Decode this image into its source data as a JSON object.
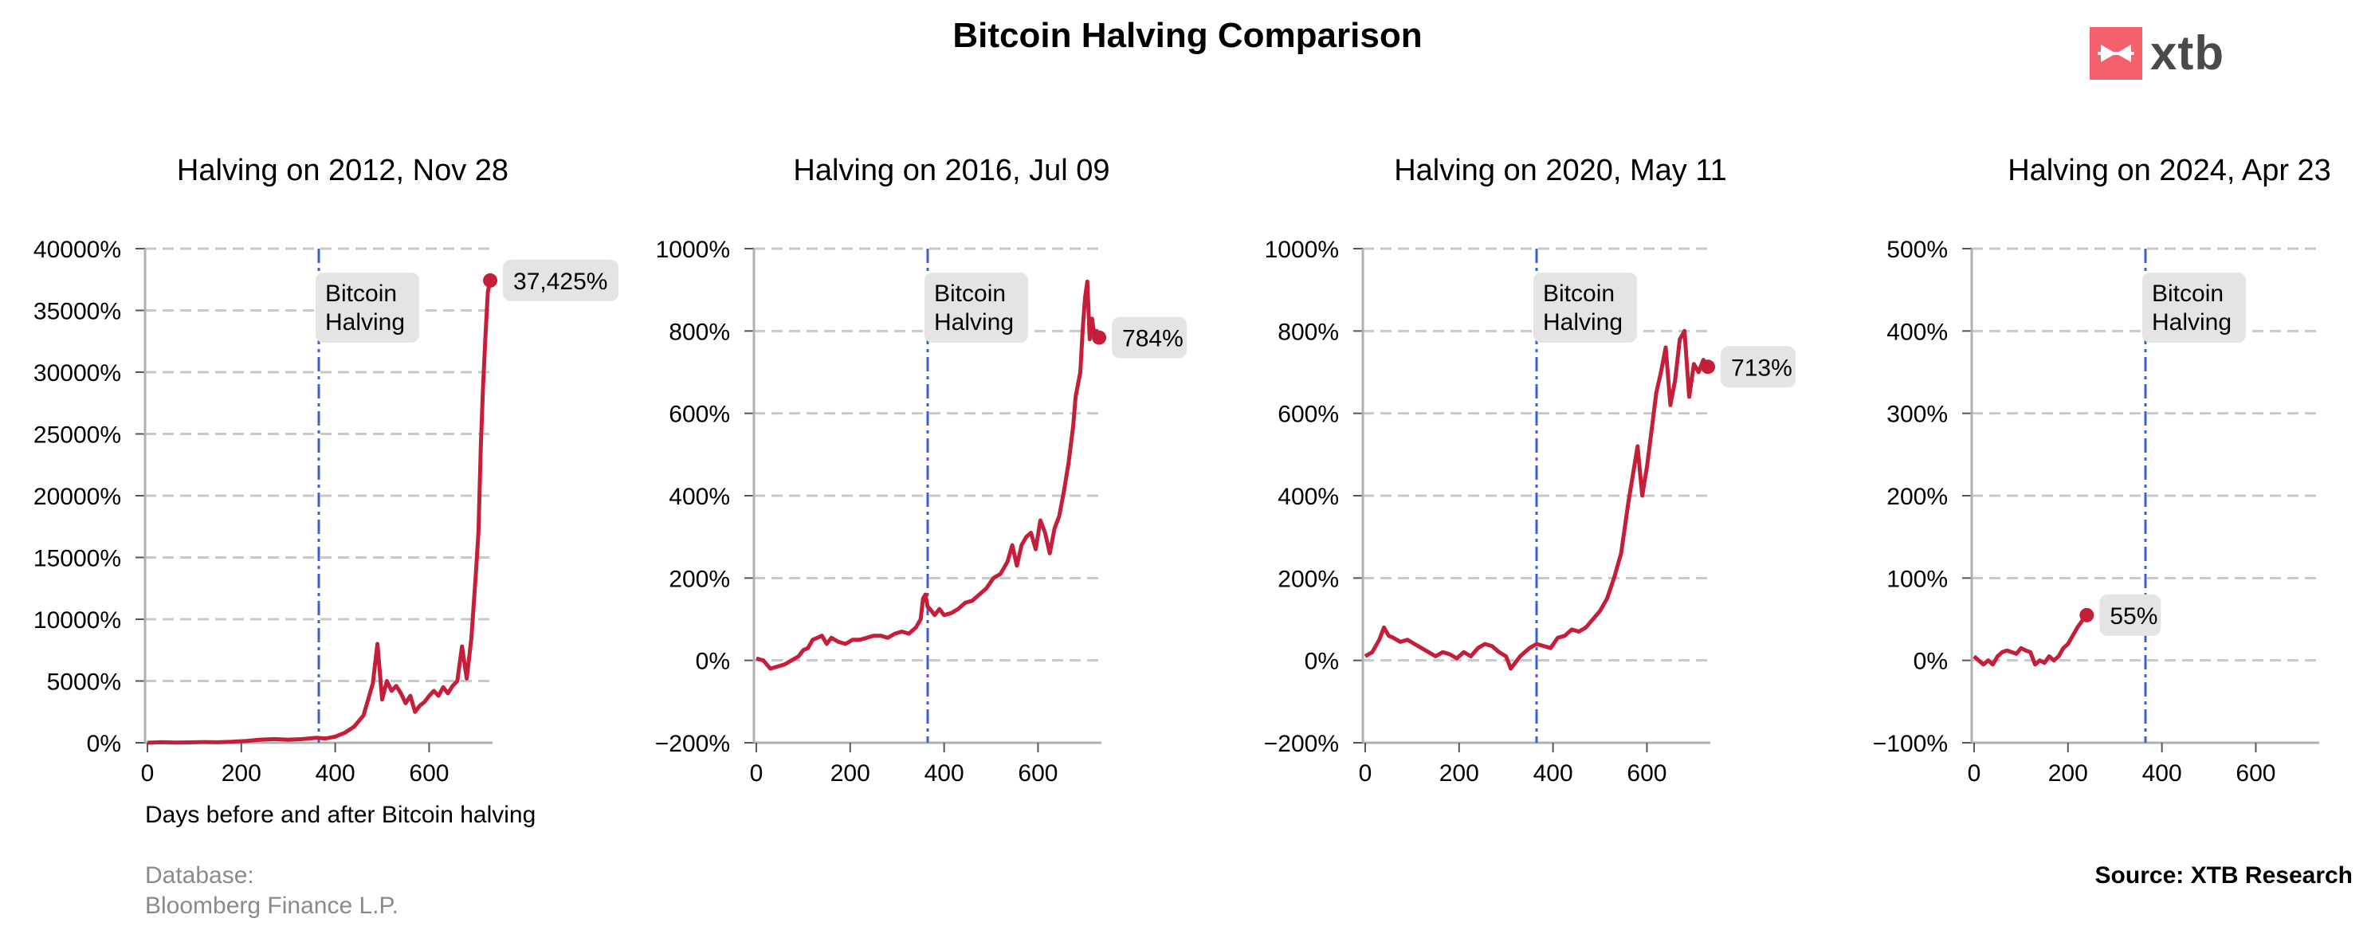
{
  "page": {
    "title": "Bitcoin Halving Comparison",
    "logo_text": "xtb",
    "database_label": "Database:",
    "database_value": "Bloomberg Finance L.P.",
    "source": "Source: XTB Research"
  },
  "colors": {
    "line": "#c41e3a",
    "halving_line": "#3a5fd9",
    "grid": "#c8c8c8",
    "label_box": "#e4e4e4",
    "logo_brand": "#f4606c"
  },
  "chart_data": [
    {
      "type": "line",
      "title": "Halving on 2012, Nov 28",
      "xlabel": "Days before and after Bitcoin halving",
      "ylabel": "",
      "xlim": [
        -5,
        735
      ],
      "ylim": [
        0,
        40000
      ],
      "xticks": [
        0,
        200,
        400,
        600
      ],
      "yticks": [
        0,
        5000,
        10000,
        15000,
        20000,
        25000,
        30000,
        35000,
        40000
      ],
      "ytick_labels": [
        "0%",
        "5000%",
        "10000%",
        "15000%",
        "20000%",
        "25000%",
        "30000%",
        "35000%",
        "40000%"
      ],
      "grid": "horizontal dashed",
      "halving_day": 365,
      "halving_label": [
        "Bitcoin",
        "Halving"
      ],
      "end_label": "37,425%",
      "series": [
        {
          "x": [
            0,
            30,
            60,
            90,
            120,
            150,
            180,
            210,
            240,
            270,
            300,
            330,
            360,
            380,
            400,
            420,
            440,
            460,
            470,
            480,
            490,
            500,
            510,
            520,
            530,
            540,
            550,
            560,
            570,
            580,
            590,
            600,
            610,
            620,
            630,
            640,
            650,
            660,
            670,
            680,
            690,
            700,
            705,
            710,
            715,
            720,
            725,
            730
          ],
          "y": [
            0,
            50,
            20,
            30,
            60,
            40,
            80,
            150,
            250,
            300,
            250,
            300,
            400,
            350,
            500,
            800,
            1300,
            2200,
            3500,
            4800,
            8000,
            3500,
            5000,
            4200,
            4600,
            4000,
            3200,
            3800,
            2500,
            3000,
            3300,
            3800,
            4200,
            3800,
            4500,
            4000,
            4600,
            5000,
            7800,
            5200,
            8500,
            14000,
            17000,
            24000,
            29000,
            33000,
            36500,
            37425
          ]
        }
      ]
    },
    {
      "type": "line",
      "title": "Halving on 2016, Jul 09",
      "xlabel": "",
      "ylabel": "",
      "xlim": [
        -5,
        735
      ],
      "ylim": [
        -200,
        1000
      ],
      "xticks": [
        0,
        200,
        400,
        600
      ],
      "yticks": [
        -200,
        0,
        200,
        400,
        600,
        800,
        1000
      ],
      "ytick_labels": [
        "−200%",
        "0%",
        "200%",
        "400%",
        "600%",
        "800%",
        "1000%"
      ],
      "grid": "horizontal dashed",
      "halving_day": 365,
      "halving_label": [
        "Bitcoin",
        "Halving"
      ],
      "end_label": "784%",
      "series": [
        {
          "x": [
            0,
            15,
            30,
            45,
            60,
            75,
            90,
            100,
            110,
            120,
            130,
            140,
            150,
            160,
            175,
            190,
            205,
            220,
            235,
            250,
            265,
            280,
            295,
            310,
            325,
            340,
            350,
            355,
            360,
            365,
            370,
            380,
            390,
            400,
            415,
            430,
            445,
            460,
            475,
            490,
            505,
            520,
            535,
            545,
            555,
            565,
            575,
            585,
            595,
            605,
            615,
            625,
            635,
            645,
            655,
            665,
            675,
            680,
            690,
            695,
            700,
            705,
            710,
            715,
            720,
            725,
            730
          ],
          "y": [
            5,
            0,
            -20,
            -15,
            -10,
            0,
            10,
            25,
            30,
            50,
            55,
            60,
            40,
            55,
            45,
            40,
            50,
            50,
            55,
            60,
            60,
            55,
            65,
            70,
            65,
            80,
            100,
            150,
            160,
            130,
            125,
            110,
            125,
            110,
            115,
            125,
            140,
            145,
            160,
            175,
            200,
            210,
            240,
            280,
            230,
            280,
            300,
            310,
            270,
            340,
            310,
            260,
            320,
            350,
            410,
            480,
            570,
            640,
            700,
            800,
            880,
            920,
            780,
            830,
            790,
            800,
            784
          ]
        }
      ]
    },
    {
      "type": "line",
      "title": "Halving on 2020, May 11",
      "xlabel": "",
      "ylabel": "",
      "xlim": [
        -5,
        735
      ],
      "ylim": [
        -200,
        1000
      ],
      "xticks": [
        0,
        200,
        400,
        600
      ],
      "yticks": [
        -200,
        0,
        200,
        400,
        600,
        800,
        1000
      ],
      "ytick_labels": [
        "−200%",
        "0%",
        "200%",
        "400%",
        "600%",
        "800%",
        "1000%"
      ],
      "grid": "horizontal dashed",
      "halving_day": 365,
      "halving_label": [
        "Bitcoin",
        "Halving"
      ],
      "end_label": "713%",
      "series": [
        {
          "x": [
            0,
            15,
            30,
            40,
            50,
            60,
            75,
            90,
            105,
            120,
            135,
            150,
            165,
            180,
            195,
            210,
            225,
            240,
            255,
            270,
            285,
            300,
            310,
            320,
            330,
            340,
            350,
            365,
            380,
            395,
            410,
            425,
            440,
            455,
            470,
            485,
            500,
            515,
            530,
            545,
            560,
            570,
            580,
            590,
            600,
            610,
            620,
            630,
            640,
            650,
            660,
            670,
            680,
            690,
            700,
            710,
            720,
            730
          ],
          "y": [
            10,
            20,
            50,
            80,
            60,
            55,
            45,
            50,
            40,
            30,
            20,
            10,
            20,
            15,
            5,
            20,
            10,
            30,
            40,
            35,
            20,
            10,
            -20,
            -5,
            10,
            20,
            30,
            40,
            35,
            30,
            55,
            60,
            75,
            70,
            80,
            100,
            120,
            150,
            200,
            260,
            380,
            450,
            520,
            400,
            470,
            560,
            650,
            700,
            760,
            620,
            680,
            780,
            800,
            640,
            720,
            700,
            730,
            713
          ]
        }
      ]
    },
    {
      "type": "line",
      "title": "Halving on 2024, Apr 23",
      "xlabel": "",
      "ylabel": "",
      "xlim": [
        -5,
        735
      ],
      "ylim": [
        -100,
        500
      ],
      "xticks": [
        0,
        200,
        400,
        600
      ],
      "yticks": [
        -100,
        0,
        100,
        200,
        300,
        400,
        500
      ],
      "ytick_labels": [
        "−100%",
        "0%",
        "100%",
        "200%",
        "300%",
        "400%",
        "500%"
      ],
      "grid": "horizontal dashed",
      "halving_day": 365,
      "halving_label": [
        "Bitcoin",
        "Halving"
      ],
      "end_label": "55%",
      "series": [
        {
          "x": [
            0,
            10,
            20,
            30,
            40,
            50,
            60,
            70,
            80,
            90,
            100,
            110,
            120,
            130,
            140,
            150,
            160,
            170,
            180,
            190,
            200,
            210,
            220,
            230,
            240
          ],
          "y": [
            5,
            0,
            -5,
            0,
            -5,
            5,
            10,
            12,
            10,
            8,
            15,
            12,
            10,
            -5,
            0,
            -3,
            5,
            0,
            5,
            15,
            20,
            30,
            40,
            48,
            55
          ]
        }
      ]
    }
  ]
}
